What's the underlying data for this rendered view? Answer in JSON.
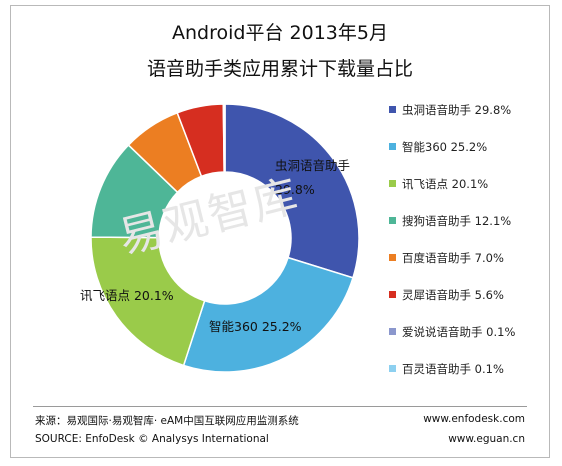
{
  "title_line1": "Android平台 2013年5月",
  "title_line2": "语音助手类应用累计下载量占比",
  "watermark": "易观智库",
  "source_cn": "来源：易观国际·易观智库· eAM中国互联网应用监测系统",
  "source_en": "SOURCE: EnfoDesk © Analysys International",
  "url1": "www.enfodesk.com",
  "url2": "www.eguan.cn",
  "chart_data": {
    "type": "pie",
    "style": "donut",
    "legend_position": "right",
    "categories": [
      "虫洞语音助手",
      "智能360",
      "讯飞语点",
      "搜狗语音助手",
      "百度语音助手",
      "灵犀语音助手",
      "爱说说语音助手",
      "百灵语音助手"
    ],
    "values": [
      29.8,
      25.2,
      20.1,
      12.1,
      7.0,
      5.6,
      0.1,
      0.1
    ],
    "legend_labels": [
      "虫洞语音助手 29.8%",
      "智能360 25.2%",
      "讯飞语点 20.1%",
      "搜狗语音助手 12.1%",
      "百度语音助手 7.0%",
      "灵犀语音助手 5.6%",
      "爱说说语音助手 0.1%",
      "百灵语音助手 0.1%"
    ],
    "colors": [
      "#3f55ad",
      "#4db1df",
      "#9acb4a",
      "#4eb697",
      "#ec7e22",
      "#d62e20",
      "#8b97cd",
      "#8dd0f0"
    ],
    "data_labels": [
      {
        "index": 0,
        "name": "虫洞语音助手",
        "value": "29.8%"
      },
      {
        "index": 1,
        "text": "智能360 25.2%"
      },
      {
        "index": 2,
        "text": "讯飞语点 20.1%"
      }
    ]
  }
}
